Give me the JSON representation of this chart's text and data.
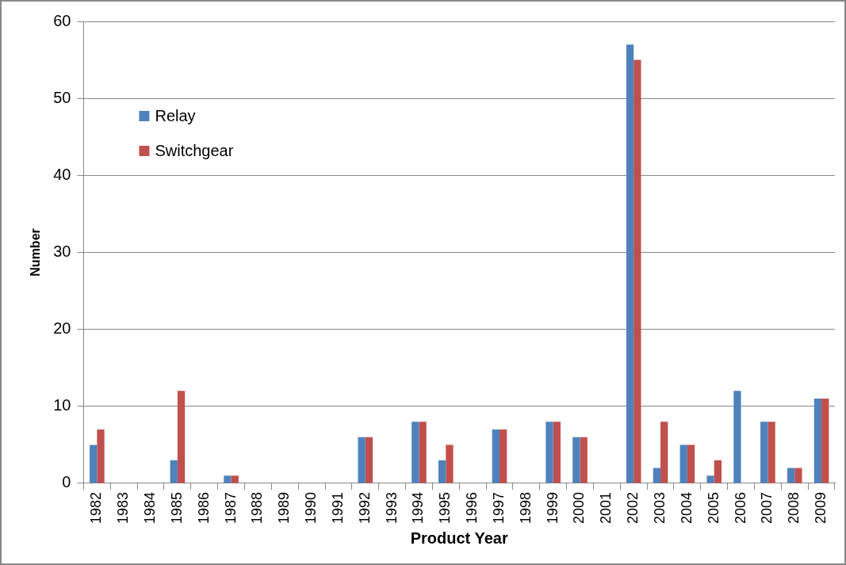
{
  "chart_data": {
    "type": "bar",
    "xlabel": "Product Year",
    "ylabel": "Number",
    "categories": [
      "1982",
      "1983",
      "1984",
      "1985",
      "1986",
      "1987",
      "1988",
      "1989",
      "1990",
      "1991",
      "1992",
      "1993",
      "1994",
      "1995",
      "1996",
      "1997",
      "1998",
      "1999",
      "2000",
      "2001",
      "2002",
      "2003",
      "2004",
      "2005",
      "2006",
      "2007",
      "2008",
      "2009"
    ],
    "series": [
      {
        "name": "Relay",
        "color": "#4f81bd",
        "values": [
          5,
          0,
          0,
          3,
          0,
          1,
          0,
          0,
          0,
          0,
          6,
          0,
          8,
          3,
          0,
          7,
          0,
          8,
          6,
          0,
          57,
          2,
          5,
          1,
          12,
          8,
          2,
          11
        ]
      },
      {
        "name": "Switchgear",
        "color": "#c0504d",
        "values": [
          7,
          0,
          0,
          12,
          0,
          1,
          0,
          0,
          0,
          0,
          6,
          0,
          8,
          5,
          0,
          7,
          0,
          8,
          6,
          0,
          55,
          8,
          5,
          3,
          0,
          8,
          2,
          11
        ]
      }
    ],
    "ylim": [
      0,
      60
    ],
    "yticks": [
      0,
      10,
      20,
      30,
      40,
      50,
      60
    ],
    "grid": "y",
    "legend": "top left"
  }
}
